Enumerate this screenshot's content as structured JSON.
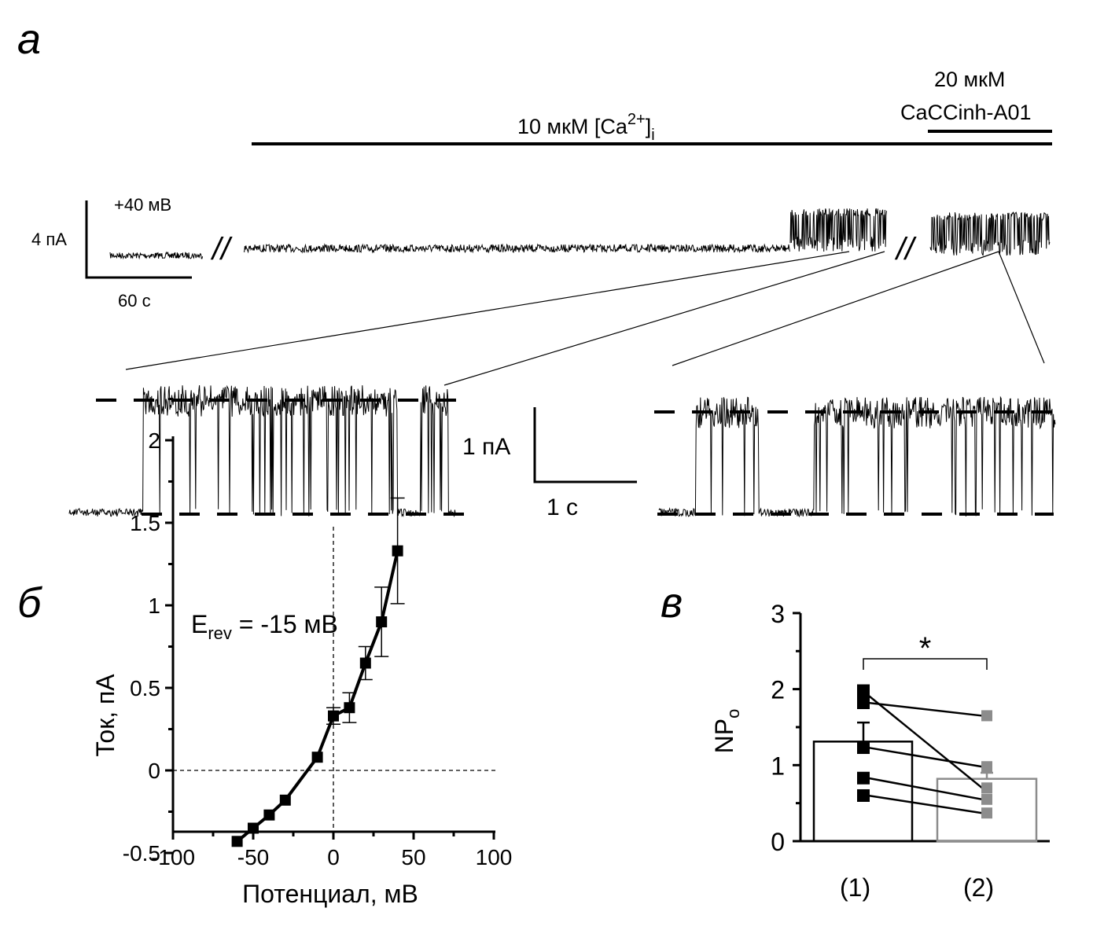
{
  "panels": {
    "a": "а",
    "b": "б",
    "c": "в"
  },
  "traces": {
    "calcium_label": "10 мкМ [Ca",
    "calcium_sup": "2+",
    "calcium_close": "]",
    "calcium_sub": "i",
    "inhibitor_line1": "20 мкМ",
    "inhibitor_line2": "CaCCinh-A01",
    "holding_potential": "+40 мВ",
    "scale_current_overview": "4 пА",
    "scale_time_overview": "60 с",
    "scale_current_zoom": "1 пА",
    "scale_time_zoom": "1 с"
  },
  "chart_data": [
    {
      "type": "scatter",
      "title": "",
      "annotation": {
        "main": "E",
        "sub": "rev",
        "rest": " = -15 мВ"
      },
      "xlabel": "Потенциал, мВ",
      "ylabel": "Ток, пА",
      "xlim": [
        -100,
        100
      ],
      "ylim": [
        -0.75,
        2
      ],
      "xticks": [
        "-100",
        "-50",
        "0",
        "50",
        "100"
      ],
      "yticks": [
        "-0.5",
        "0",
        "0.5",
        "1",
        "1.5",
        "2"
      ],
      "x": [
        -60,
        -50,
        -40,
        -30,
        -10,
        0,
        10,
        20,
        30,
        40
      ],
      "y": [
        -0.43,
        -0.35,
        -0.27,
        -0.18,
        0.08,
        0.33,
        0.38,
        0.65,
        0.9,
        1.33
      ],
      "yerr": [
        0,
        0,
        0,
        0,
        0,
        0.05,
        0.09,
        0.1,
        0.21,
        0.32
      ],
      "fit_line": true,
      "reference_lines": {
        "x": 0,
        "y": 0
      }
    },
    {
      "type": "bar",
      "title": "",
      "ylabel": "NP",
      "ylabel_sub": "o",
      "ylim": [
        0,
        3
      ],
      "yticks": [
        "0",
        "1",
        "2",
        "3"
      ],
      "categories": [
        "(1)",
        "(2)"
      ],
      "values": [
        1.31,
        0.82
      ],
      "errors": [
        0.25,
        0.08
      ],
      "colors": [
        "#000000",
        "#8c8c8c"
      ],
      "paired_points": [
        [
          1.82,
          1.65
        ],
        [
          1.92,
          0.7
        ],
        [
          1.23,
          0.98
        ],
        [
          0.83,
          0.55
        ],
        [
          0.6,
          0.37
        ]
      ],
      "extra_points_group1": [
        1.98
      ],
      "significance": "*"
    }
  ]
}
